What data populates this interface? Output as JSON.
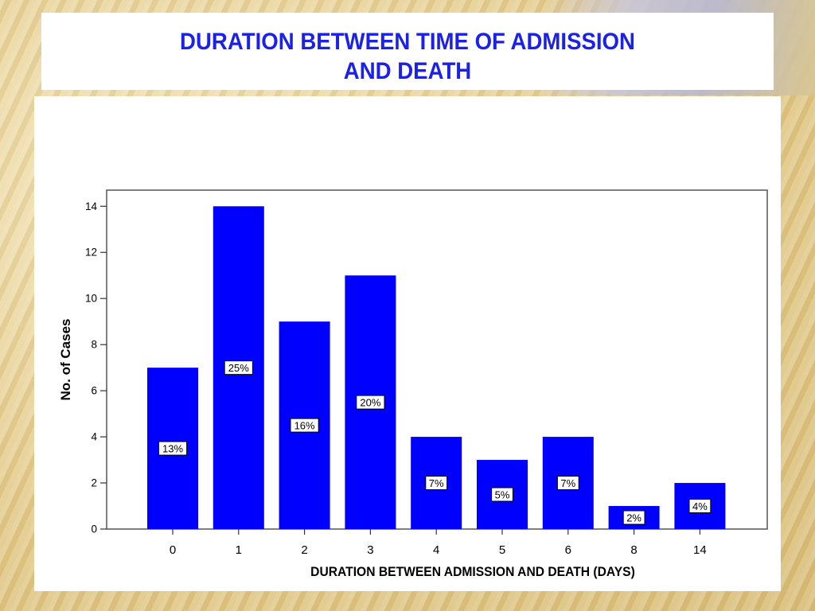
{
  "slide": {
    "title_line1": "DURATION BETWEEN TIME OF ADMISSION",
    "title_line2": "AND DEATH"
  },
  "colors": {
    "bar": "#0000ff",
    "title": "#1b22e6",
    "plot_background": "#ffffff"
  },
  "chart_data": {
    "type": "bar",
    "title": "",
    "xlabel": "DURATION BETWEEN ADMISSION AND DEATH (DAYS)",
    "ylabel": "No. of Cases",
    "categories": [
      "0",
      "1",
      "2",
      "3",
      "4",
      "5",
      "6",
      "8",
      "14"
    ],
    "values": [
      7,
      14,
      9,
      11,
      4,
      3,
      4,
      1,
      2
    ],
    "data_labels": [
      "13%",
      "25%",
      "16%",
      "20%",
      "7%",
      "5%",
      "7%",
      "2%",
      "4%"
    ],
    "yticks": [
      "0",
      "2",
      "4",
      "6",
      "8",
      "10",
      "12",
      "14"
    ],
    "ylim": [
      0,
      14.7
    ],
    "grid": false,
    "legend": "none"
  }
}
